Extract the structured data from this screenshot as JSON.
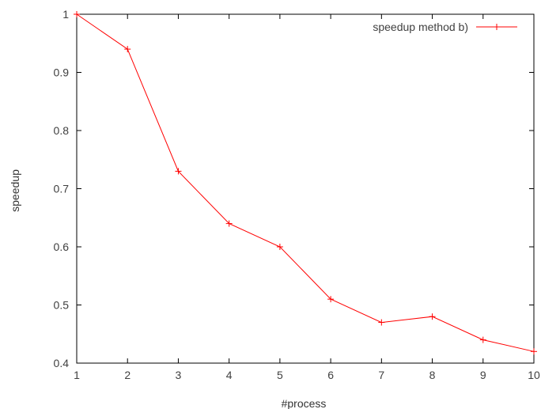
{
  "chart_data": {
    "type": "line",
    "title": "",
    "xlabel": "#process",
    "ylabel": "speedup",
    "xlim": [
      1,
      10
    ],
    "ylim": [
      0.4,
      1.0
    ],
    "x_ticks": [
      "1",
      "2",
      "3",
      "4",
      "5",
      "6",
      "7",
      "8",
      "9",
      "10"
    ],
    "y_ticks": [
      "0.4",
      "0.5",
      "0.6",
      "0.7",
      "0.8",
      "0.9",
      "1"
    ],
    "grid": false,
    "legend_position": "top-right",
    "series": [
      {
        "name": "speedup method b)",
        "color": "#ff0000",
        "marker": "plus",
        "x": [
          1,
          2,
          3,
          4,
          5,
          6,
          7,
          8,
          9,
          10
        ],
        "values": [
          1.0,
          0.94,
          0.73,
          0.64,
          0.6,
          0.51,
          0.47,
          0.48,
          0.44,
          0.42
        ]
      }
    ]
  }
}
